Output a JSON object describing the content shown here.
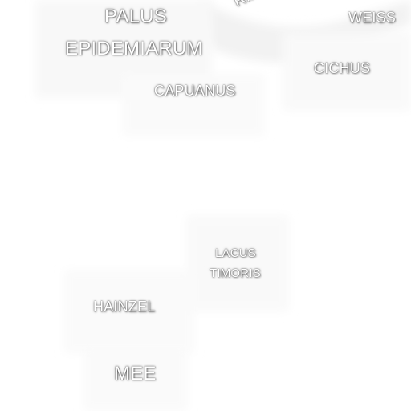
{
  "map": {
    "background": "#ffffff",
    "label_color": "#ffffff",
    "labels": {
      "rima": "Rim",
      "palus": "PALUS",
      "epidemiarum": "EPIDEMIARUM",
      "weiss": "WEISS",
      "cichus": "CICHUS",
      "capuanus": "CAPUANUS",
      "lacus": "LACUS",
      "timoris": "TIMORIS",
      "hainzel": "HAINZEL",
      "mee": "MEE"
    }
  }
}
